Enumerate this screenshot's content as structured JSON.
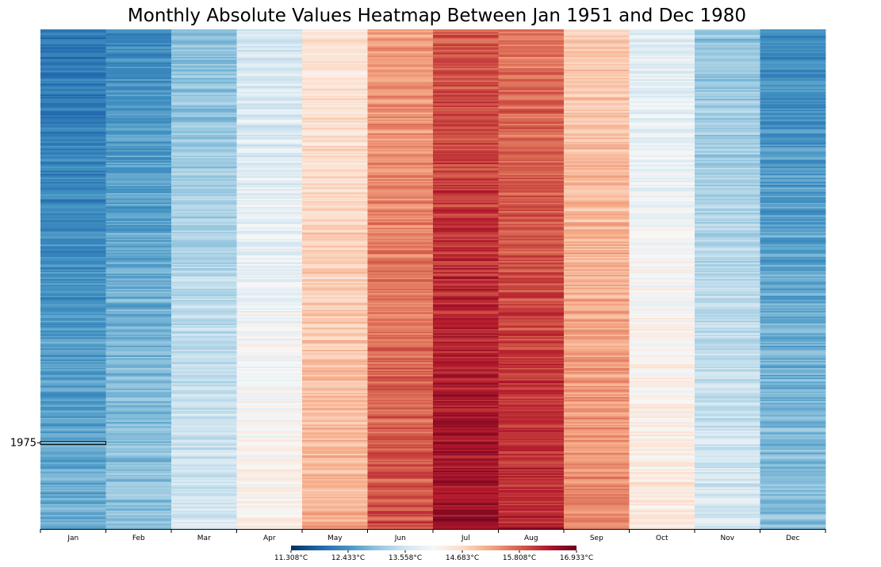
{
  "chart_data": {
    "type": "heatmap",
    "title": "Monthly Absolute Values Heatmap Between Jan 1951 and Dec 1980",
    "xlabel": "",
    "ylabel": "",
    "x_categories": [
      "Jan",
      "Feb",
      "Mar",
      "Apr",
      "May",
      "Jun",
      "Jul",
      "Aug",
      "Sep",
      "Oct",
      "Nov",
      "Dec"
    ],
    "y_start_year": 1951,
    "y_end_year": 1980,
    "y_tick_labels": [
      {
        "value": 1975,
        "label": "1975"
      }
    ],
    "highlighted_row": {
      "year": 1975,
      "months": [
        "Jan"
      ]
    },
    "monthly_mean_celsius": [
      12.4,
      12.7,
      13.3,
      13.95,
      14.8,
      15.6,
      16.2,
      15.95,
      15.15,
      14.1,
      13.35,
      12.65
    ],
    "value_unit": "°C",
    "color_scale": {
      "name": "RdBu (reversed)",
      "min": 11.308,
      "max": 16.933,
      "ticks": [
        "11.308°C",
        "12.433°C",
        "13.558°C",
        "14.683°C",
        "15.808°C",
        "16.933°C"
      ],
      "stops": [
        "#053061",
        "#2166ac",
        "#4393c3",
        "#92c5de",
        "#d1e5f0",
        "#f7f7f7",
        "#fddbc7",
        "#f4a582",
        "#d6604d",
        "#b2182b",
        "#67001f"
      ]
    },
    "legend_position": "bottom-center",
    "grid": false
  }
}
